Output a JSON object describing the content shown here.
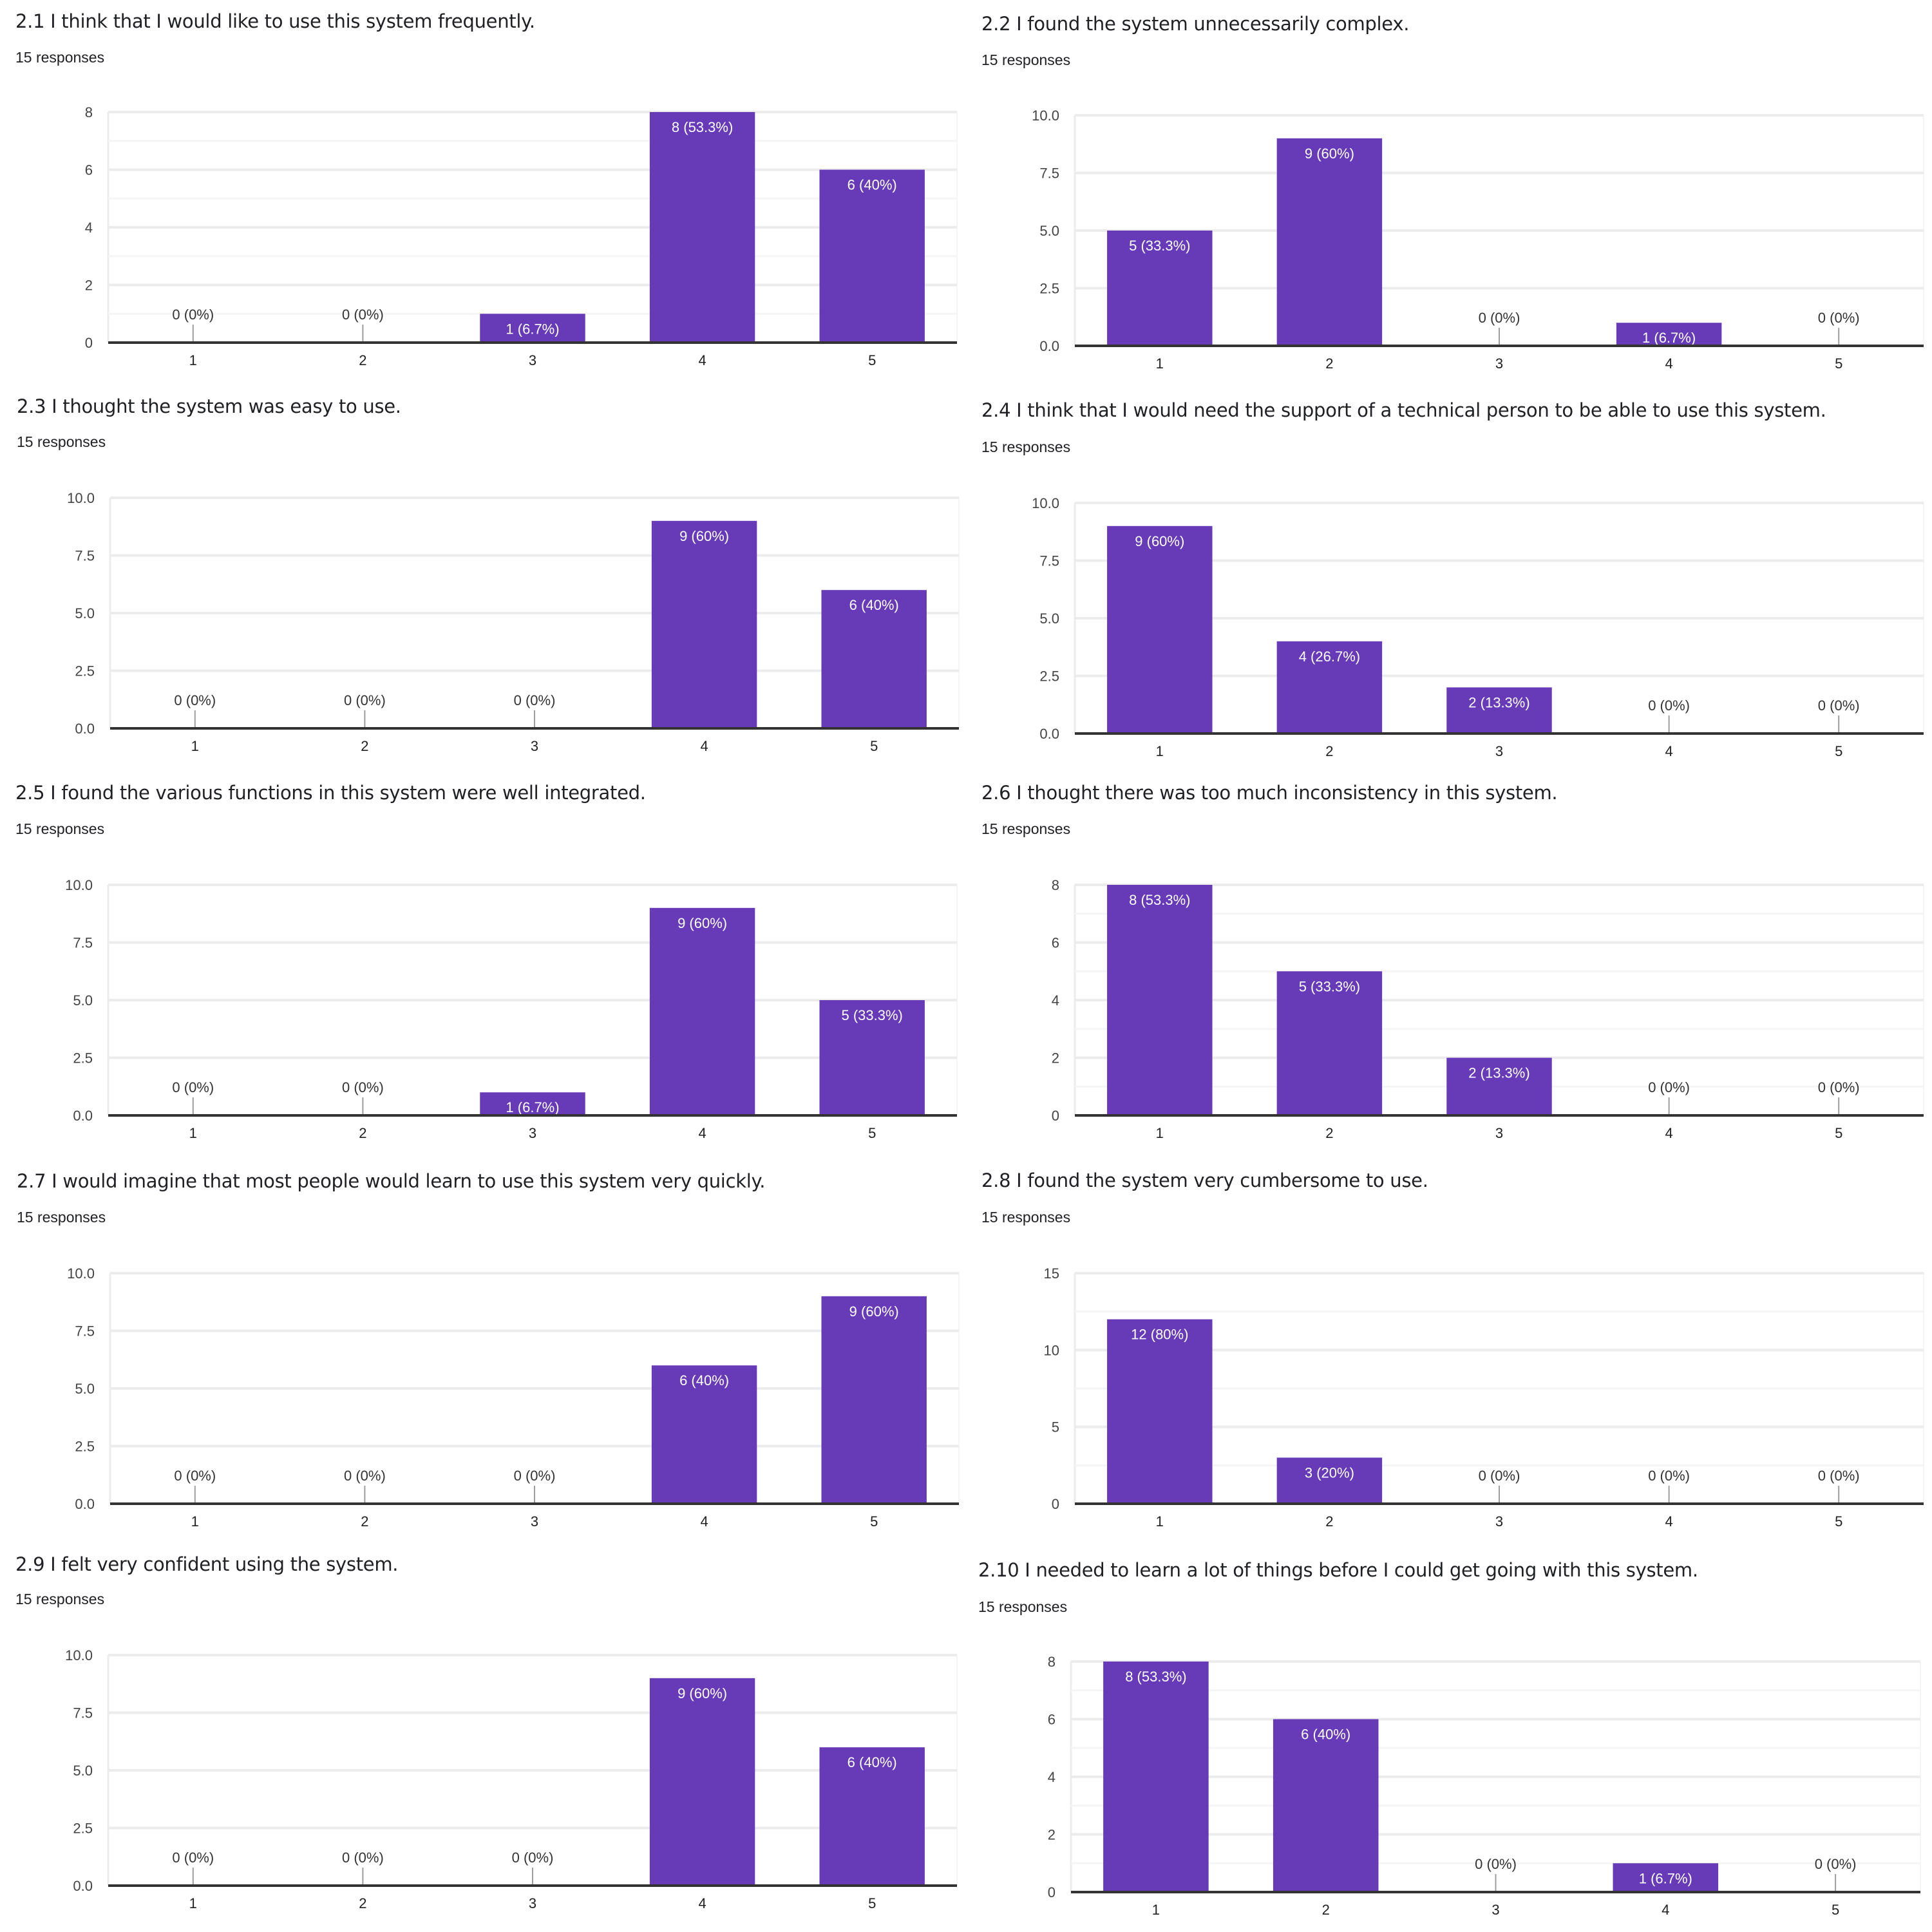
{
  "theme": {
    "bar_color": "#673ab7",
    "grid_major": "#ececec",
    "grid_minor": "#f5f5f5",
    "axis_color": "#333333",
    "text_color": "#202124",
    "zero_stem_color": "#9e9e9e"
  },
  "chart_data": [
    {
      "id": "q2_1",
      "type": "bar",
      "title": "2.1 I think that I would like to use this system frequently.",
      "responses": "15 responses",
      "categories": [
        "1",
        "2",
        "3",
        "4",
        "5"
      ],
      "values": [
        0,
        0,
        1,
        8,
        6
      ],
      "labels": [
        "0 (0%)",
        "0 (0%)",
        "1 (6.7%)",
        "8 (53.3%)",
        "6 (40%)"
      ],
      "yticks": [
        "0",
        "2",
        "4",
        "6",
        "8"
      ],
      "ylim": [
        0,
        8
      ],
      "xlabel": "",
      "ylabel": "",
      "grid": true
    },
    {
      "id": "q2_2",
      "type": "bar",
      "title": "2.2 I found the system unnecessarily complex.",
      "responses": "15 responses",
      "categories": [
        "1",
        "2",
        "3",
        "4",
        "5"
      ],
      "values": [
        5,
        9,
        0,
        1,
        0
      ],
      "labels": [
        "5 (33.3%)",
        "9 (60%)",
        "0 (0%)",
        "1 (6.7%)",
        "0 (0%)"
      ],
      "yticks": [
        "0.0",
        "2.5",
        "5.0",
        "7.5",
        "10.0"
      ],
      "ylim": [
        0,
        10
      ],
      "xlabel": "",
      "ylabel": "",
      "grid": true
    },
    {
      "id": "q2_3",
      "type": "bar",
      "title": "2.3 I thought the system was easy to use.",
      "responses": "15 responses",
      "categories": [
        "1",
        "2",
        "3",
        "4",
        "5"
      ],
      "values": [
        0,
        0,
        0,
        9,
        6
      ],
      "labels": [
        "0 (0%)",
        "0 (0%)",
        "0 (0%)",
        "9 (60%)",
        "6 (40%)"
      ],
      "yticks": [
        "0.0",
        "2.5",
        "5.0",
        "7.5",
        "10.0"
      ],
      "ylim": [
        0,
        10
      ],
      "xlabel": "",
      "ylabel": "",
      "grid": true
    },
    {
      "id": "q2_4",
      "type": "bar",
      "title": "2.4 I think that I would need the support of a technical person to be able to use this system.",
      "responses": "15 responses",
      "categories": [
        "1",
        "2",
        "3",
        "4",
        "5"
      ],
      "values": [
        9,
        4,
        2,
        0,
        0
      ],
      "labels": [
        "9 (60%)",
        "4 (26.7%)",
        "2 (13.3%)",
        "0 (0%)",
        "0 (0%)"
      ],
      "yticks": [
        "0.0",
        "2.5",
        "5.0",
        "7.5",
        "10.0"
      ],
      "ylim": [
        0,
        10
      ],
      "xlabel": "",
      "ylabel": "",
      "grid": true
    },
    {
      "id": "q2_5",
      "type": "bar",
      "title": "2.5 I found the various functions in this system were well integrated.",
      "responses": "15 responses",
      "categories": [
        "1",
        "2",
        "3",
        "4",
        "5"
      ],
      "values": [
        0,
        0,
        1,
        9,
        5
      ],
      "labels": [
        "0 (0%)",
        "0 (0%)",
        "1 (6.7%)",
        "9 (60%)",
        "5 (33.3%)"
      ],
      "yticks": [
        "0.0",
        "2.5",
        "5.0",
        "7.5",
        "10.0"
      ],
      "ylim": [
        0,
        10
      ],
      "xlabel": "",
      "ylabel": "",
      "grid": true
    },
    {
      "id": "q2_6",
      "type": "bar",
      "title": "2.6 I thought there was too much inconsistency in this system.",
      "responses": "15 responses",
      "categories": [
        "1",
        "2",
        "3",
        "4",
        "5"
      ],
      "values": [
        8,
        5,
        2,
        0,
        0
      ],
      "labels": [
        "8 (53.3%)",
        "5 (33.3%)",
        "2 (13.3%)",
        "0 (0%)",
        "0 (0%)"
      ],
      "yticks": [
        "0",
        "2",
        "4",
        "6",
        "8"
      ],
      "ylim": [
        0,
        8
      ],
      "xlabel": "",
      "ylabel": "",
      "grid": true
    },
    {
      "id": "q2_7",
      "type": "bar",
      "title": "2.7 I would imagine that most people would learn to use this system very quickly.",
      "responses": "15 responses",
      "categories": [
        "1",
        "2",
        "3",
        "4",
        "5"
      ],
      "values": [
        0,
        0,
        0,
        6,
        9
      ],
      "labels": [
        "0 (0%)",
        "0 (0%)",
        "0 (0%)",
        "6 (40%)",
        "9 (60%)"
      ],
      "yticks": [
        "0.0",
        "2.5",
        "5.0",
        "7.5",
        "10.0"
      ],
      "ylim": [
        0,
        10
      ],
      "xlabel": "",
      "ylabel": "",
      "grid": true
    },
    {
      "id": "q2_8",
      "type": "bar",
      "title": "2.8 I found the system very cumbersome to use.",
      "responses": "15 responses",
      "categories": [
        "1",
        "2",
        "3",
        "4",
        "5"
      ],
      "values": [
        12,
        3,
        0,
        0,
        0
      ],
      "labels": [
        "12 (80%)",
        "3 (20%)",
        "0 (0%)",
        "0 (0%)",
        "0 (0%)"
      ],
      "yticks": [
        "0",
        "5",
        "10",
        "15"
      ],
      "ylim": [
        0,
        15
      ],
      "xlabel": "",
      "ylabel": "",
      "grid": true
    },
    {
      "id": "q2_9",
      "type": "bar",
      "title": "2.9 I felt very confident using the system.",
      "responses": "15 responses",
      "categories": [
        "1",
        "2",
        "3",
        "4",
        "5"
      ],
      "values": [
        0,
        0,
        0,
        9,
        6
      ],
      "labels": [
        "0 (0%)",
        "0 (0%)",
        "0 (0%)",
        "9 (60%)",
        "6 (40%)"
      ],
      "yticks": [
        "0.0",
        "2.5",
        "5.0",
        "7.5",
        "10.0"
      ],
      "ylim": [
        0,
        10
      ],
      "xlabel": "",
      "ylabel": "",
      "grid": true
    },
    {
      "id": "q2_10",
      "type": "bar",
      "title": "2.10 I needed to learn a lot of things before I could get going with this system.",
      "responses": "15 responses",
      "categories": [
        "1",
        "2",
        "3",
        "4",
        "5"
      ],
      "values": [
        8,
        6,
        0,
        1,
        0
      ],
      "labels": [
        "8 (53.3%)",
        "6 (40%)",
        "0 (0%)",
        "1 (6.7%)",
        "0 (0%)"
      ],
      "yticks": [
        "0",
        "2",
        "4",
        "6",
        "8"
      ],
      "ylim": [
        0,
        8
      ],
      "xlabel": "",
      "ylabel": "",
      "grid": true
    }
  ]
}
